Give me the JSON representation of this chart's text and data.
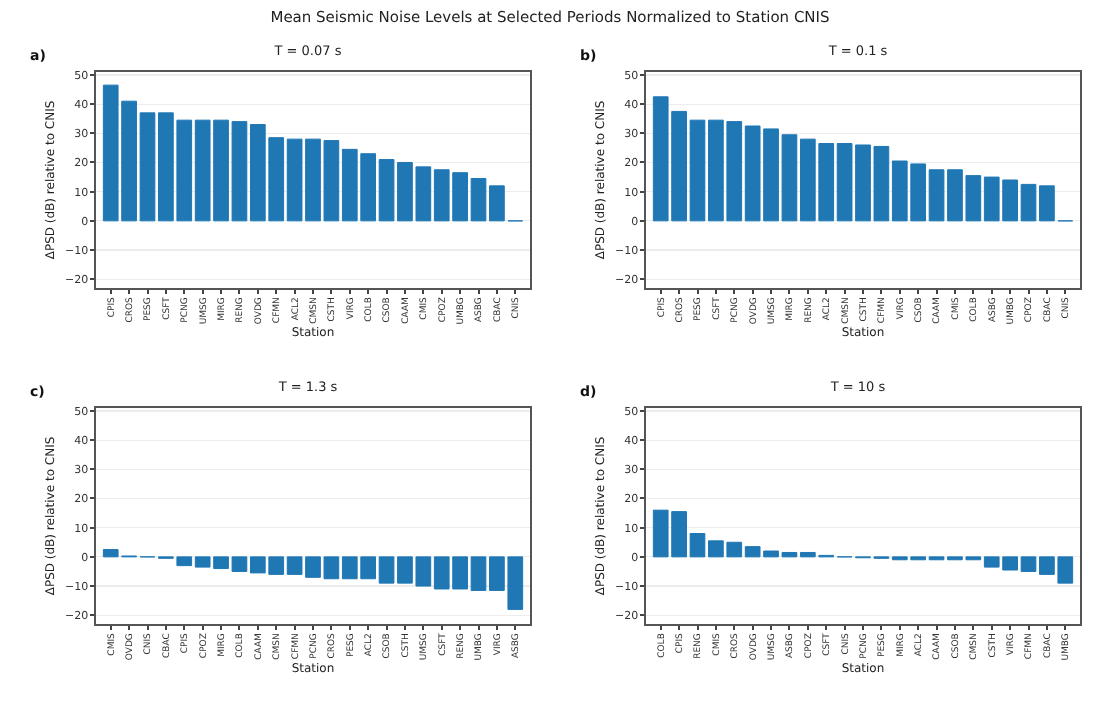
{
  "chart_data": [
    {
      "type": "bar",
      "title": "Mean Seismic Noise Levels at Selected Periods Normalized to Station CNIS",
      "subtitle": "T = 0.07 s",
      "annotations": [
        "a)"
      ],
      "xlabel": "Station",
      "ylabel": "ΔPSD (dB) relative to CNIS",
      "color": "#1f77b4",
      "grid": "y",
      "ylim": [
        -23,
        51
      ],
      "yticks": [
        -20,
        -10,
        0,
        10,
        20,
        30,
        40,
        50
      ],
      "categories": [
        "CPIS",
        "CROS",
        "PESG",
        "CSFT",
        "PCNG",
        "UMSG",
        "MIRG",
        "RENG",
        "OVDG",
        "CFMN",
        "ACL2",
        "CMSN",
        "CSTH",
        "VIRG",
        "COLB",
        "CSOB",
        "CAAM",
        "CMIS",
        "CPOZ",
        "UMBG",
        "ASBG",
        "CBAC",
        "CNIS"
      ],
      "values": [
        46.5,
        41,
        37,
        37,
        34.5,
        34.5,
        34.5,
        34,
        33,
        28.5,
        28,
        28,
        27.5,
        24.5,
        23,
        21,
        20,
        18.5,
        17.5,
        16.5,
        14.5,
        12,
        0
      ]
    },
    {
      "type": "bar",
      "title": "T = 0.1 s",
      "annotations": [
        "b)"
      ],
      "xlabel": "Station",
      "ylabel": "ΔPSD (dB) relative to CNIS",
      "color": "#1f77b4",
      "grid": "y",
      "ylim": [
        -23,
        51
      ],
      "yticks": [
        -20,
        -10,
        0,
        10,
        20,
        30,
        40,
        50
      ],
      "categories": [
        "CPIS",
        "CROS",
        "PESG",
        "CSFT",
        "PCNG",
        "OVDG",
        "UMSG",
        "MIRG",
        "RENG",
        "ACL2",
        "CMSN",
        "CSTH",
        "CFMN",
        "VIRG",
        "CSOB",
        "CAAM",
        "CMIS",
        "COLB",
        "ASBG",
        "UMBG",
        "CPOZ",
        "CBAC",
        "CNIS"
      ],
      "values": [
        42.5,
        37.5,
        34.5,
        34.5,
        34,
        32.5,
        31.5,
        29.5,
        28,
        26.5,
        26.5,
        26,
        25.5,
        20.5,
        19.5,
        17.5,
        17.5,
        15.5,
        15,
        14,
        12.5,
        12,
        0
      ]
    },
    {
      "type": "bar",
      "title": "T = 1.3 s",
      "annotations": [
        "c)"
      ],
      "xlabel": "Station",
      "ylabel": "ΔPSD (dB) relative to CNIS",
      "color": "#1f77b4",
      "grid": "y",
      "ylim": [
        -23,
        51
      ],
      "yticks": [
        -20,
        -10,
        0,
        10,
        20,
        30,
        40,
        50
      ],
      "categories": [
        "CMIS",
        "OVDG",
        "CNIS",
        "CBAC",
        "CPIS",
        "CPOZ",
        "MIRG",
        "COLB",
        "CAAM",
        "CMSN",
        "CFMN",
        "PCNG",
        "CROS",
        "PESG",
        "ACL2",
        "CSOB",
        "CSTH",
        "UMSG",
        "CSFT",
        "RENG",
        "UMBG",
        "VIRG",
        "ASBG"
      ],
      "values": [
        2.5,
        0.3,
        0,
        -0.5,
        -3,
        -3.5,
        -4,
        -5,
        -5.5,
        -6,
        -6,
        -7,
        -7.5,
        -7.5,
        -7.5,
        -9,
        -9,
        -10,
        -11,
        -11,
        -11.5,
        -11.5,
        -18
      ]
    },
    {
      "type": "bar",
      "title": "T = 10 s",
      "annotations": [
        "d)"
      ],
      "xlabel": "Station",
      "ylabel": "ΔPSD (dB) relative to CNIS",
      "color": "#1f77b4",
      "grid": "y",
      "ylim": [
        -23,
        51
      ],
      "yticks": [
        -20,
        -10,
        0,
        10,
        20,
        30,
        40,
        50
      ],
      "categories": [
        "COLB",
        "CPIS",
        "RENG",
        "CMIS",
        "CROS",
        "OVDG",
        "UMSG",
        "ASBG",
        "CPOZ",
        "CSFT",
        "CNIS",
        "PCNG",
        "PESG",
        "MIRG",
        "ACL2",
        "CAAM",
        "CSOB",
        "CMSN",
        "CSTH",
        "VIRG",
        "CFMN",
        "CBAC",
        "UMBG"
      ],
      "values": [
        16,
        15.5,
        8,
        5.5,
        5,
        3.5,
        2,
        1.5,
        1.5,
        0.5,
        0,
        -0.3,
        -0.5,
        -1,
        -1,
        -1,
        -1,
        -1,
        -3.5,
        -4.5,
        -5,
        -6,
        -9
      ]
    }
  ]
}
